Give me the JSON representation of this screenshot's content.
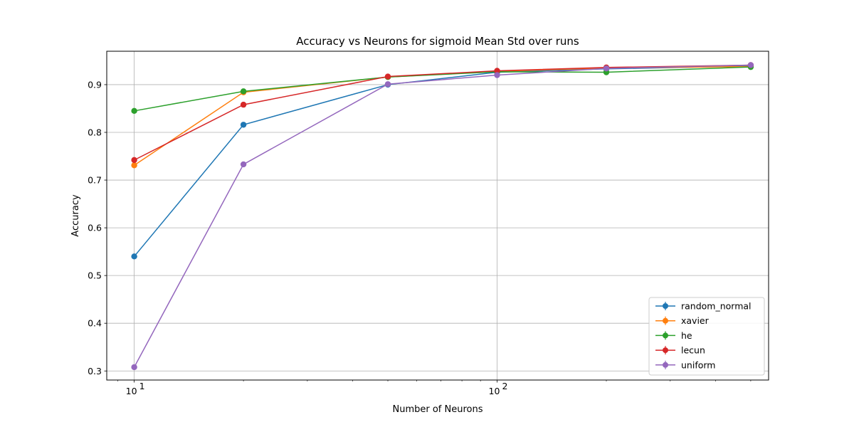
{
  "chart_data": {
    "type": "line",
    "title": "Accuracy vs Neurons for sigmoid Mean Std over runs",
    "xlabel": "Number of Neurons",
    "ylabel": "Accuracy",
    "xscale": "log",
    "x": [
      10,
      20,
      50,
      100,
      200,
      500
    ],
    "xlim": [
      8.4,
      560
    ],
    "ylim": [
      0.281,
      0.97
    ],
    "x_ticks": [
      {
        "value": 10,
        "base": "10",
        "exp": "1"
      },
      {
        "value": 100,
        "base": "10",
        "exp": "2"
      }
    ],
    "y_ticks": [
      0.3,
      0.4,
      0.5,
      0.6,
      0.7,
      0.8,
      0.9
    ],
    "y_tick_labels": [
      "0.3",
      "0.4",
      "0.5",
      "0.6",
      "0.7",
      "0.8",
      "0.9"
    ],
    "grid": true,
    "legend_position": "lower right",
    "series": [
      {
        "name": "random_normal",
        "color": "#1f77b4",
        "values": [
          0.54,
          0.816,
          0.9,
          0.926,
          0.933,
          0.939
        ]
      },
      {
        "name": "xavier",
        "color": "#ff7f0e",
        "values": [
          0.731,
          0.884,
          0.916,
          0.928,
          0.935,
          0.938
        ]
      },
      {
        "name": "he",
        "color": "#2ca02c",
        "values": [
          0.845,
          0.886,
          0.916,
          0.927,
          0.926,
          0.937
        ]
      },
      {
        "name": "lecun",
        "color": "#d62728",
        "values": [
          0.742,
          0.858,
          0.917,
          0.929,
          0.936,
          0.941
        ]
      },
      {
        "name": "uniform",
        "color": "#9467bd",
        "values": [
          0.308,
          0.733,
          0.901,
          0.92,
          0.934,
          0.941
        ]
      }
    ]
  }
}
